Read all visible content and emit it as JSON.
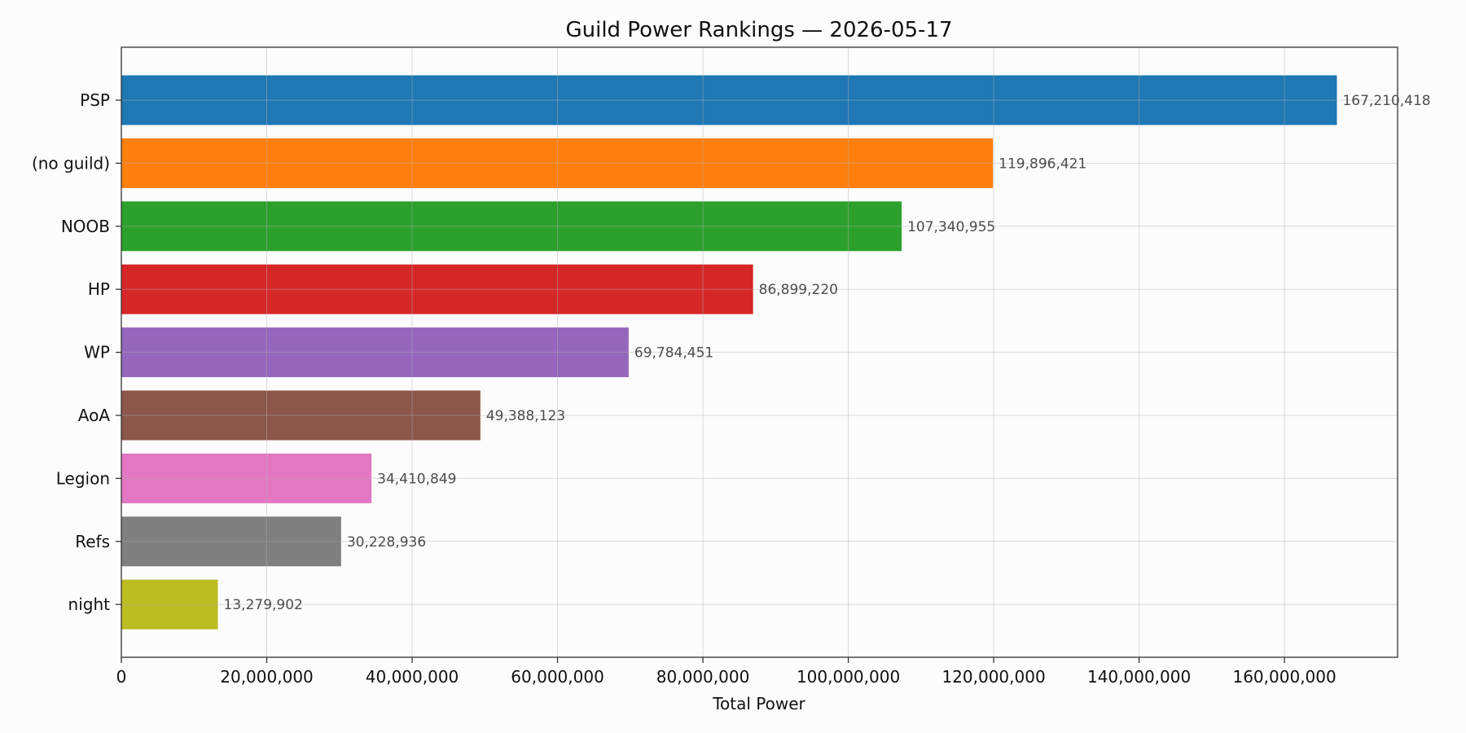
{
  "chart_data": {
    "type": "bar",
    "orientation": "horizontal",
    "title": "Guild Power Rankings — 2026-05-17",
    "xlabel": "Total Power",
    "ylabel": "",
    "xlim": [
      0,
      175560000
    ],
    "xticks": [
      0,
      20000000,
      40000000,
      60000000,
      80000000,
      100000000,
      120000000,
      140000000,
      160000000
    ],
    "xtick_labels": [
      "0",
      "20,000,000",
      "40,000,000",
      "60,000,000",
      "80,000,000",
      "100,000,000",
      "120,000,000",
      "140,000,000",
      "160,000,000"
    ],
    "grid": true,
    "categories": [
      "PSP",
      "(no guild)",
      "NOOB",
      "HP",
      "WP",
      "AoA",
      "Legion",
      "Refs",
      "night"
    ],
    "values": [
      167210418,
      119896421,
      107340955,
      86899220,
      69784451,
      49388123,
      34410849,
      30228936,
      13279902
    ],
    "value_labels": [
      "167,210,418",
      "119,896,421",
      "107,340,955",
      "86,899,220",
      "69,784,451",
      "49,388,123",
      "34,410,849",
      "30,228,936",
      "13,279,902"
    ],
    "colors": [
      "#1f77b4",
      "#ff7f0e",
      "#2ca02c",
      "#d62728",
      "#9467bd",
      "#8c564b",
      "#e377c2",
      "#7f7f7f",
      "#bcbd22"
    ]
  }
}
